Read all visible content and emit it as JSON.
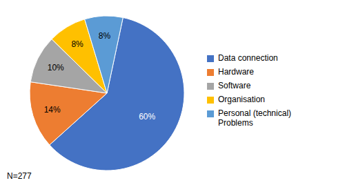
{
  "chart_data": {
    "type": "pie",
    "categories": [
      "Data connection",
      "Hardware",
      "Software",
      "Organisation",
      "Personal (technical)\nProblems"
    ],
    "values": [
      60,
      14,
      10,
      8,
      8
    ],
    "value_labels": [
      "60%",
      "14%",
      "10%",
      "8%",
      "8%"
    ],
    "colors": [
      "#4472C4",
      "#ED7D31",
      "#A5A5A5",
      "#FFC000",
      "#5B9BD5"
    ],
    "data_labels": true,
    "legend": "right",
    "annotations": [
      "N=277"
    ]
  }
}
